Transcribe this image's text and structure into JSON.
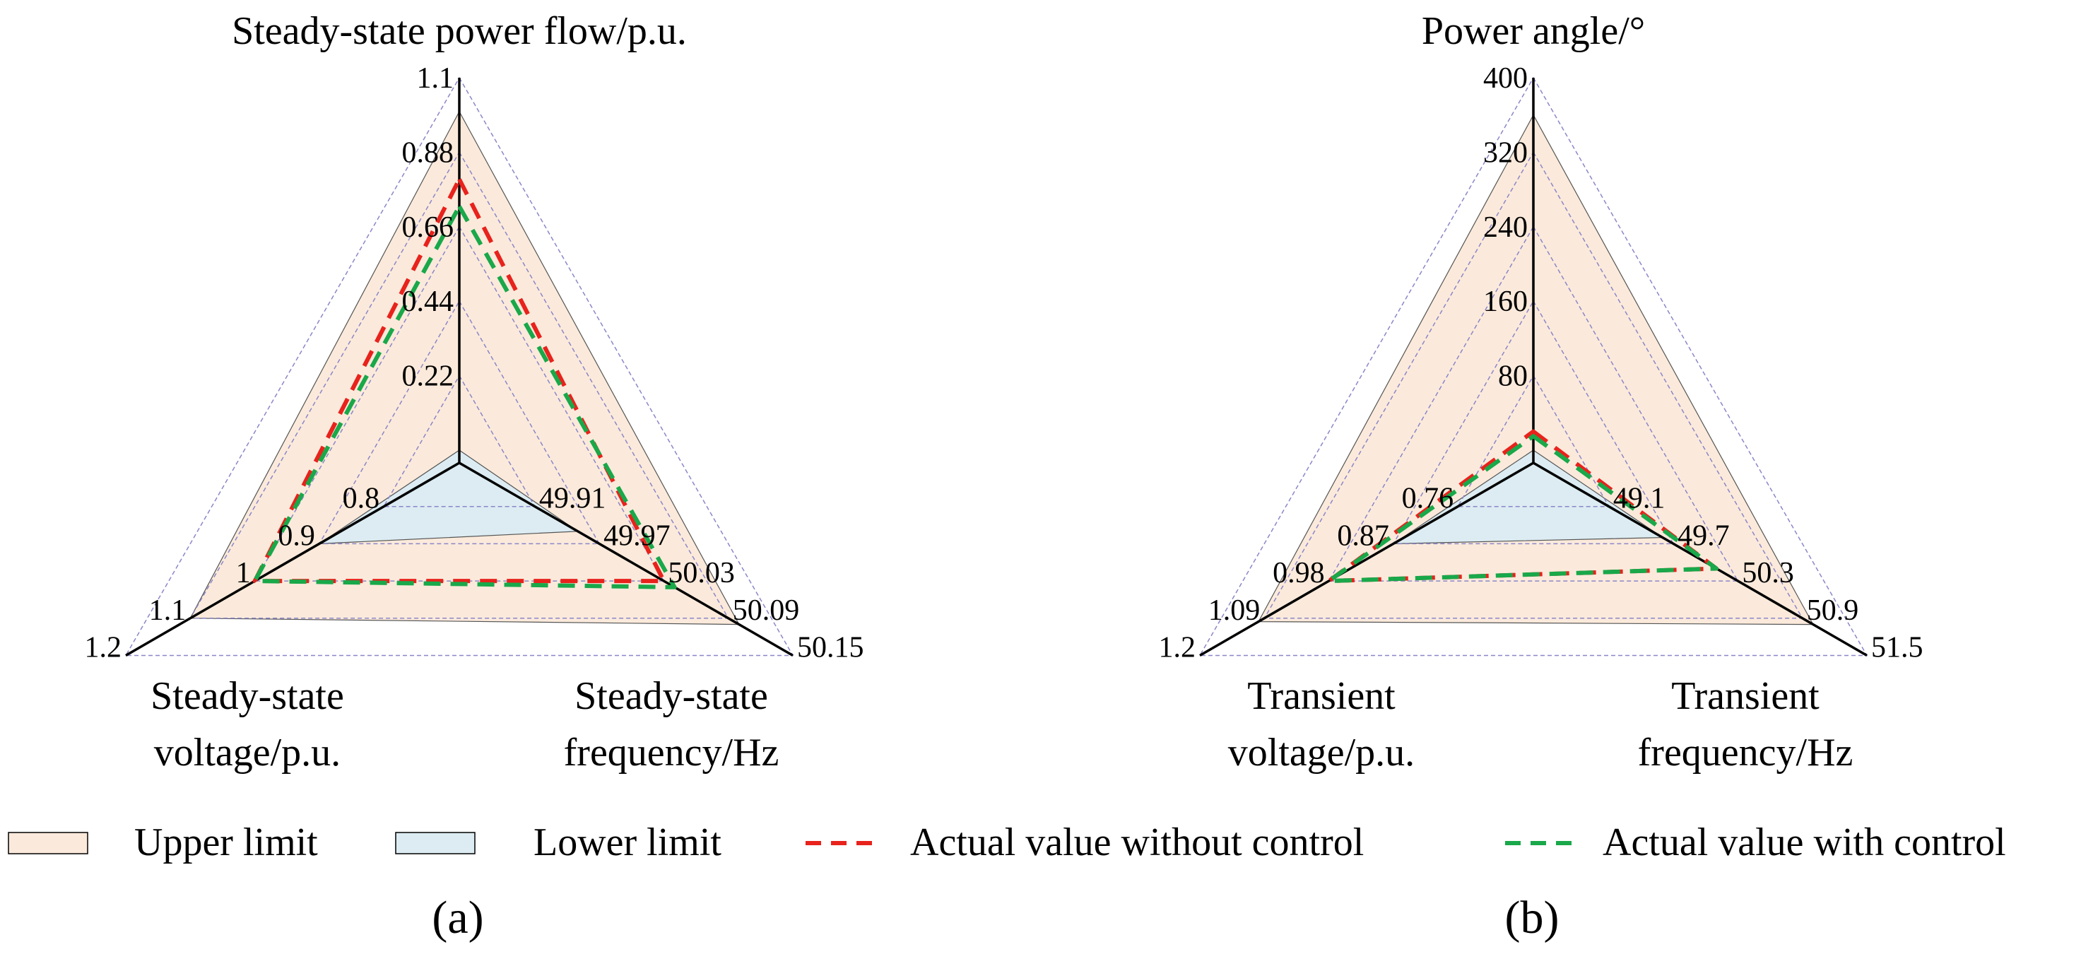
{
  "colors": {
    "upper_fill": "#fbeadb",
    "lower_fill": "#dcecf2",
    "without_control": "#e8221c",
    "with_control": "#19a84a",
    "grid": "#8b86c9",
    "axis": "#000000"
  },
  "legend": {
    "upper": "Upper limit",
    "lower": "Lower limit",
    "without": "Actual value without control",
    "with": "Actual value with control"
  },
  "chart_data": [
    {
      "type": "radar",
      "panel_label": "(a)",
      "axes": [
        {
          "title_lines": [
            "Steady-state power flow/p.u."
          ],
          "ticks": [
            "0.22",
            "0.44",
            "0.66",
            "0.88",
            "1.1"
          ],
          "range": [
            0,
            1.1
          ]
        },
        {
          "title_lines": [
            "Steady-state",
            "frequency/Hz"
          ],
          "ticks": [
            "49.91",
            "49.97",
            "50.03",
            "50.09",
            "50.15"
          ],
          "range": [
            49.85,
            50.15
          ]
        },
        {
          "title_lines": [
            "Steady-state",
            "voltage/p.u."
          ],
          "ticks": [
            "0.8",
            "0.9",
            "1",
            "1.1",
            "1.2"
          ],
          "range": [
            0.7,
            1.2
          ]
        }
      ],
      "series": [
        {
          "name": "Upper limit",
          "values": [
            1.0,
            50.1,
            1.1
          ]
        },
        {
          "name": "Lower limit",
          "values": [
            0,
            49.95,
            0.9
          ]
        },
        {
          "name": "Actual value without control",
          "values": [
            0.8,
            50.03,
            1.0
          ]
        },
        {
          "name": "Actual value with control",
          "values": [
            0.72,
            50.04,
            1.0
          ]
        }
      ]
    },
    {
      "type": "radar",
      "panel_label": "(b)",
      "axes": [
        {
          "title_lines": [
            "Power angle/°"
          ],
          "ticks": [
            "80",
            "160",
            "240",
            "320",
            "400"
          ],
          "range": [
            0,
            400
          ]
        },
        {
          "title_lines": [
            "Transient",
            "frequency/Hz"
          ],
          "ticks": [
            "49.1",
            "49.7",
            "50.3",
            "50.9",
            "51.5"
          ],
          "range": [
            48.5,
            51.5
          ]
        },
        {
          "title_lines": [
            "Transient",
            "voltage/p.u."
          ],
          "ticks": [
            "0.76",
            "0.87",
            "0.98",
            "1.09",
            "1.2"
          ],
          "range": [
            0.65,
            1.2
          ]
        }
      ],
      "series": [
        {
          "name": "Upper limit",
          "values": [
            360,
            51.0,
            1.1
          ]
        },
        {
          "name": "Lower limit",
          "values": [
            0,
            49.6,
            0.87
          ]
        },
        {
          "name": "Actual value without control",
          "values": [
            20,
            50.1,
            0.98
          ]
        },
        {
          "name": "Actual value with control",
          "values": [
            15,
            50.1,
            0.98
          ]
        }
      ]
    }
  ]
}
